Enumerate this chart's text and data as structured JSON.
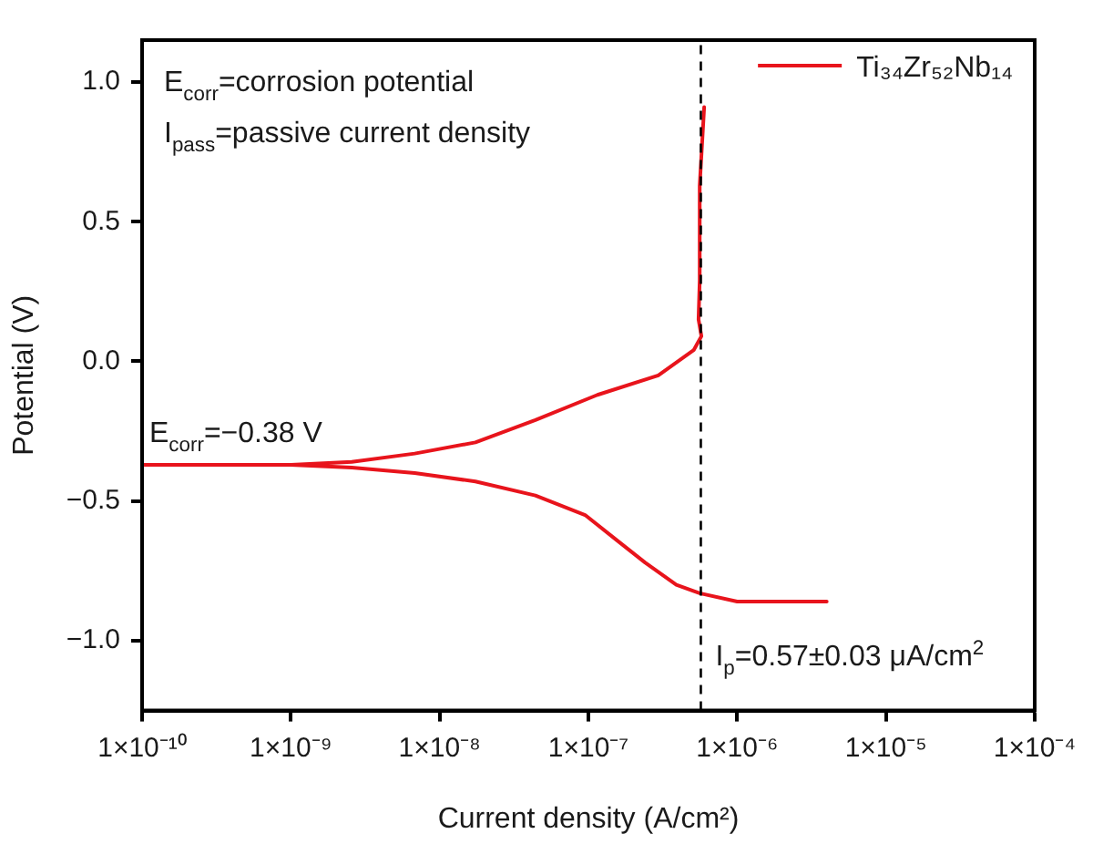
{
  "chart_data": {
    "type": "line",
    "xlabel": "Current density (A/cm²)",
    "ylabel": "Potential (V)",
    "log": "x",
    "grid": false,
    "legend": "top right",
    "marker": "none",
    "line_style": "solid",
    "xlim": [
      1e-10,
      0.0001
    ],
    "xticks": [
      {
        "value": 1e-10,
        "label": "1×10⁻¹⁰"
      },
      {
        "value": 1e-09,
        "label": "1×10⁻⁹"
      },
      {
        "value": 1e-08,
        "label": "1×10⁻⁸"
      },
      {
        "value": 1e-07,
        "label": "1×10⁻⁷"
      },
      {
        "value": 1e-06,
        "label": "1×10⁻⁶"
      },
      {
        "value": 1e-05,
        "label": "1×10⁻⁵"
      },
      {
        "value": 0.0001,
        "label": "1×10⁻⁴"
      }
    ],
    "ylim": [
      -1.25,
      1.15
    ],
    "yticks": [
      {
        "value": -1,
        "label": "−1.0"
      },
      {
        "value": -0.5,
        "label": "−0.5"
      },
      {
        "value": 0,
        "label": "0.0"
      },
      {
        "value": 0.5,
        "label": "0.5"
      },
      {
        "value": 1,
        "label": "1.0"
      }
    ],
    "series": [
      {
        "name": "Ti₃₄Zr₅₂Nb₁₄",
        "color": "#e8141c",
        "x": [
          4e-06,
          1e-06,
          5.6e-07,
          3.9e-07,
          2.4e-07,
          1.55e-07,
          9.5e-08,
          4.4e-08,
          1.74e-08,
          6.8e-09,
          2.57e-09,
          1e-09,
          1e-10,
          1e-09,
          2.57e-09,
          6.8e-09,
          1.74e-08,
          4.4e-08,
          1.15e-07,
          2.95e-07,
          5.1e-07,
          5.75e-07,
          5.5e-07,
          5.6e-07,
          5.6e-07,
          6e-07
        ],
        "values": [
          -0.86,
          -0.86,
          -0.83,
          -0.8,
          -0.72,
          -0.64,
          -0.55,
          -0.48,
          -0.43,
          -0.4,
          -0.38,
          -0.37,
          -0.37,
          -0.37,
          -0.36,
          -0.33,
          -0.29,
          -0.21,
          -0.12,
          -0.05,
          0.04,
          0.09,
          0.15,
          0.29,
          0.63,
          0.91
        ]
      }
    ],
    "ref_lines": [
      {
        "axis": "x",
        "value": 5.7e-07,
        "color": "#000000",
        "line_style": "dashed"
      }
    ],
    "annotations": [
      "E$_{corr}$=corrosion potential",
      "I$_{pass}$=passive current density",
      {
        "text": "E$_{corr}$=−0.38 V",
        "x": 1e-10,
        "y": -0.38
      },
      {
        "text": "I$_{p}$=0.57±0.03 μA/cm$^{2}$",
        "x": 5.7e-07,
        "y": -1.05
      }
    ]
  }
}
